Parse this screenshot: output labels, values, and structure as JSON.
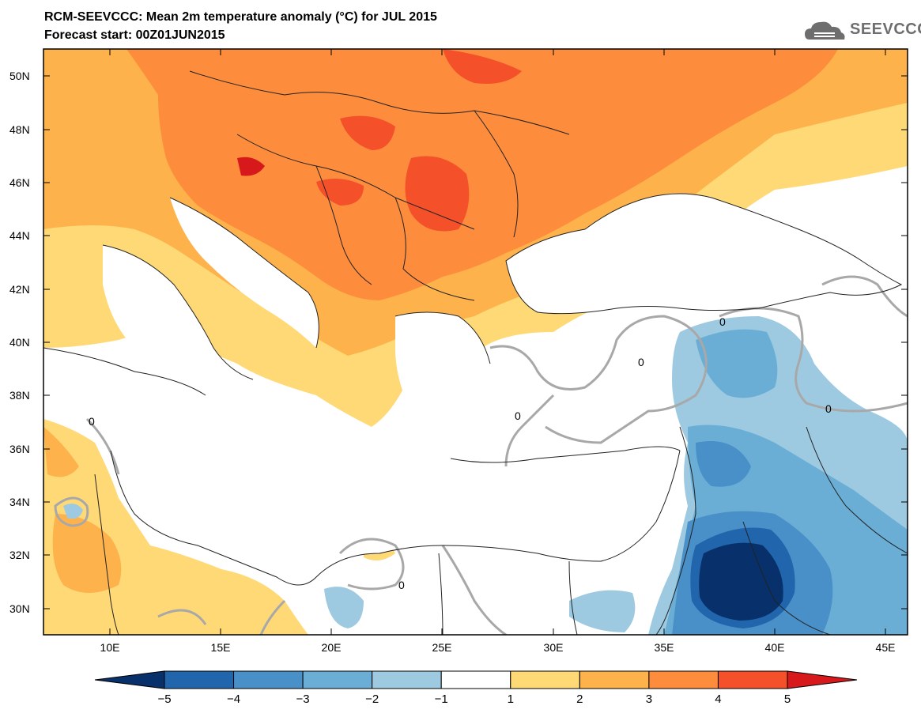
{
  "title": "RCM-SEEVCCC: Mean 2m temperature anomaly (°C) for JUL 2015",
  "subtitle": "Forecast start: 00Z01JUN2015",
  "logo_text": "SEEVCCC",
  "map": {
    "lon_range": [
      7,
      46
    ],
    "lat_range": [
      29,
      51
    ],
    "lon_ticks": [
      "10E",
      "15E",
      "20E",
      "25E",
      "30E",
      "35E",
      "40E",
      "45E"
    ],
    "lat_ticks": [
      "50N",
      "48N",
      "46N",
      "44N",
      "42N",
      "40N",
      "38N",
      "36N",
      "34N",
      "32N",
      "30N"
    ],
    "contour_label": "0"
  },
  "colorbar": {
    "levels": [
      "−5",
      "−4",
      "−3",
      "−2",
      "−1",
      "1",
      "2",
      "3",
      "4",
      "5"
    ],
    "colors": [
      "#08306b",
      "#2166ac",
      "#4a90c8",
      "#6aaed6",
      "#9ecae1",
      "#ffffff",
      "#fed976",
      "#feb24c",
      "#fd8d3c",
      "#f4502a",
      "#d7191c"
    ]
  }
}
